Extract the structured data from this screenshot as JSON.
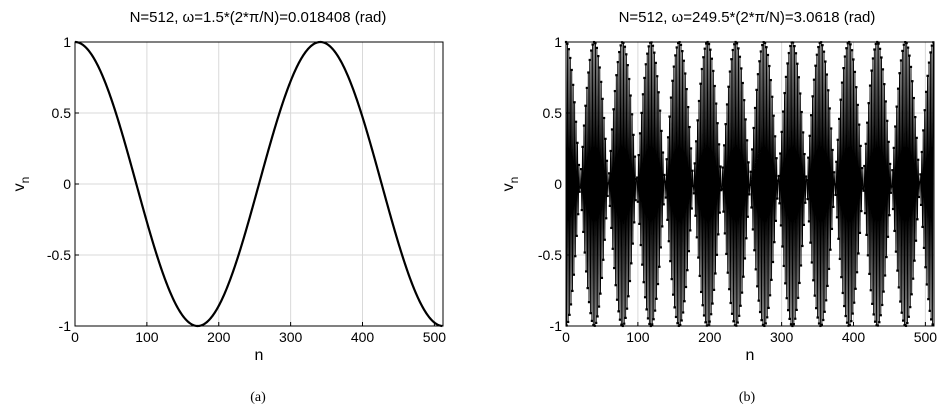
{
  "chart_data": [
    {
      "type": "line",
      "title": "N=512, ω=1.5*(2*π/N)=0.018408 (rad)",
      "xlabel": "n",
      "ylabel": "v",
      "ylabel_sub": "n",
      "caption": "(a)",
      "N": 512,
      "omega": 0.018408,
      "formula": "v_n = cos(omega * n), n = 0..511",
      "xlim": [
        0,
        512
      ],
      "ylim": [
        -1,
        1
      ],
      "xticks": [
        0,
        100,
        200,
        300,
        400,
        500
      ],
      "yticks": [
        1,
        0.5,
        0,
        -0.5,
        -1
      ],
      "xtick_labels": [
        "0",
        "100",
        "200",
        "300",
        "400",
        "500"
      ],
      "ytick_labels": [
        "1",
        "0.5",
        "0",
        "-0.5",
        "-1"
      ],
      "grid": true,
      "line_color": "#000000"
    },
    {
      "type": "line",
      "title": "N=512, ω=249.5*(2*π/N)=3.0618 (rad)",
      "xlabel": "n",
      "ylabel": "v",
      "ylabel_sub": "n",
      "caption": "(b)",
      "N": 512,
      "omega": 3.0618,
      "formula": "v_n = cos(omega * n), n = 0..511",
      "xlim": [
        0,
        512
      ],
      "ylim": [
        -1,
        1
      ],
      "xticks": [
        0,
        100,
        200,
        300,
        400,
        500
      ],
      "yticks": [
        1,
        0.5,
        0,
        -0.5,
        -1
      ],
      "xtick_labels": [
        "0",
        "100",
        "200",
        "300",
        "400",
        "500"
      ],
      "ytick_labels": [
        "1",
        "0.5",
        "0",
        "-0.5",
        "-1"
      ],
      "grid": true,
      "line_color": "#000000"
    }
  ]
}
